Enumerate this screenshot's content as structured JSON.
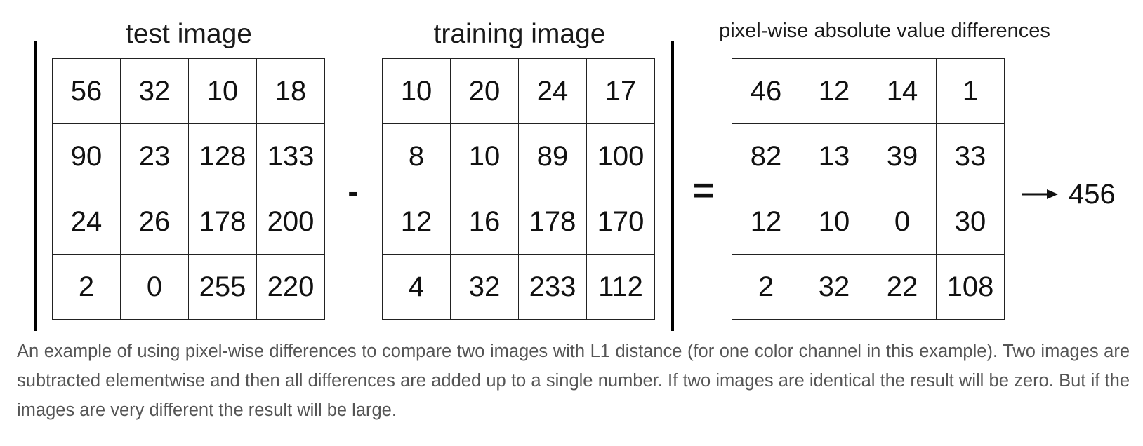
{
  "titles": {
    "test": "test image",
    "training": "training image",
    "diff": "pixel-wise absolute value differences"
  },
  "operators": {
    "minus": "-",
    "equals": "="
  },
  "matrices": {
    "test": [
      [
        56,
        32,
        10,
        18
      ],
      [
        90,
        23,
        128,
        133
      ],
      [
        24,
        26,
        178,
        200
      ],
      [
        2,
        0,
        255,
        220
      ]
    ],
    "training": [
      [
        10,
        20,
        24,
        17
      ],
      [
        8,
        10,
        89,
        100
      ],
      [
        12,
        16,
        178,
        170
      ],
      [
        4,
        32,
        233,
        112
      ]
    ],
    "diff": [
      [
        46,
        12,
        14,
        1
      ],
      [
        82,
        13,
        39,
        33
      ],
      [
        12,
        10,
        0,
        30
      ],
      [
        2,
        32,
        22,
        108
      ]
    ]
  },
  "result": "456",
  "caption": "An example of using pixel-wise differences to compare two images with L1 distance (for one color channel in this example). Two images are subtracted elementwise and then all differences are added up to a single number. If two images are identical the result will be zero. But if the images are very different the result will be large."
}
